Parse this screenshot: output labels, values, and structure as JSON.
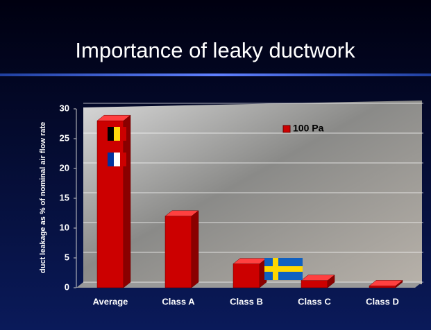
{
  "chart_data": {
    "type": "bar3d",
    "title": "Importance of leaky ductwork",
    "y_label": "duct leakage as % of nominal air flow rate",
    "categories": [
      "Average",
      "Class A",
      "Class B",
      "Class C",
      "Class D"
    ],
    "series": [
      {
        "name": "100 Pa",
        "color": "#cc0000",
        "values": [
          28,
          12,
          4,
          1.2,
          0.3
        ]
      }
    ],
    "ylim": [
      0,
      30
    ],
    "yticks": [
      0,
      5,
      10,
      15,
      20,
      25,
      30
    ],
    "grid": true,
    "legend": "top-right"
  }
}
